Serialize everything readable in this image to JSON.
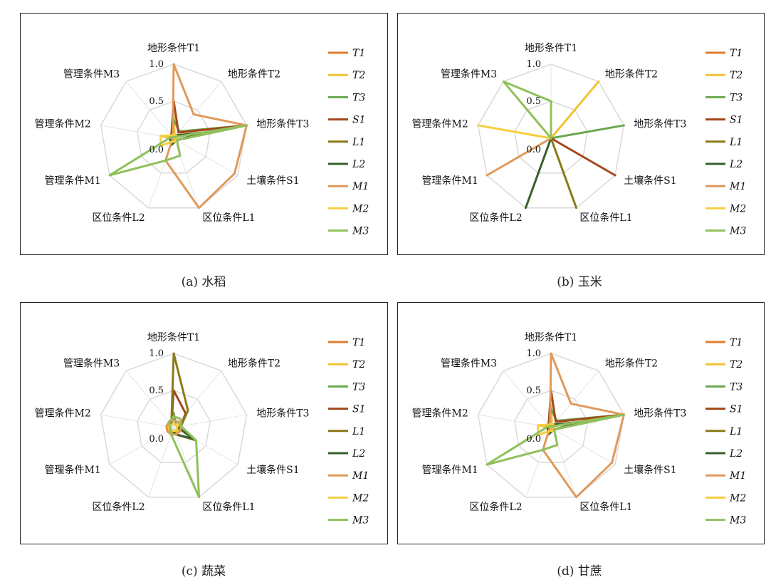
{
  "chart_data": [
    {
      "type": "radar",
      "caption": "(a) 水稻",
      "axes": [
        "地形条件T1",
        "地形条件T2",
        "地形条件T3",
        "土壤条件S1",
        "区位条件L1",
        "区位条件L2",
        "管理条件M1",
        "管理条件M2",
        "管理条件M3"
      ],
      "axis_label_visible": [
        true,
        true,
        true,
        true,
        true,
        true,
        true,
        true,
        true
      ],
      "ticks": [
        "0.0",
        "0.5",
        "1.0"
      ],
      "rlim": [
        0,
        1
      ],
      "legend": "right",
      "series": [
        {
          "name": "T1",
          "color": "#e07b2a",
          "values": [
            0.05,
            0.02,
            0.02,
            0.02,
            0.02,
            0.02,
            0.02,
            0.02,
            0.02
          ]
        },
        {
          "name": "T2",
          "color": "#f1c232",
          "values": [
            0.3,
            0.02,
            0.05,
            0.02,
            0.02,
            0.02,
            0.02,
            0.15,
            0.02
          ]
        },
        {
          "name": "T3",
          "color": "#6aa84f",
          "values": [
            0.25,
            0.12,
            1.0,
            0.05,
            0.05,
            0.05,
            0.05,
            0.05,
            0.05
          ]
        },
        {
          "name": "S1",
          "color": "#a3471b",
          "values": [
            0.5,
            0.1,
            1.0,
            0.05,
            0.05,
            0.05,
            0.05,
            0.05,
            0.05
          ]
        },
        {
          "name": "L1",
          "color": "#8b7a1a",
          "values": [
            0.05,
            0.05,
            0.5,
            0.05,
            0.05,
            0.05,
            0.05,
            0.05,
            0.05
          ]
        },
        {
          "name": "L2",
          "color": "#38602a",
          "values": [
            0.05,
            0.05,
            0.45,
            0.05,
            0.05,
            0.1,
            0.05,
            0.05,
            0.05
          ]
        },
        {
          "name": "M1",
          "color": "#e0995a",
          "values": [
            1.0,
            0.42,
            1.0,
            0.95,
            1.0,
            0.32,
            0.02,
            0.02,
            0.02
          ]
        },
        {
          "name": "M2",
          "color": "#f5cf40",
          "values": [
            0.05,
            0.05,
            0.05,
            0.05,
            0.05,
            0.05,
            0.2,
            0.18,
            0.05
          ]
        },
        {
          "name": "M3",
          "color": "#8fc15a",
          "values": [
            0.02,
            0.02,
            1.0,
            0.05,
            0.25,
            0.32,
            1.0,
            0.05,
            0.02
          ]
        }
      ]
    },
    {
      "type": "radar",
      "caption": "(b) 玉米",
      "axes": [
        "地形条件T1",
        "地形条件T2",
        "地形条件T3",
        "土壤条件S1",
        "区位条件L1",
        "区位条件L2",
        "管理条件M1",
        "管理条件M2",
        "管理条件M3"
      ],
      "axis_label_visible": [
        true,
        true,
        true,
        true,
        true,
        true,
        true,
        true,
        true
      ],
      "ticks": [
        "0.0",
        "0.5",
        "1.0"
      ],
      "rlim": [
        0,
        1
      ],
      "legend": "right",
      "series": [
        {
          "name": "T1",
          "color": "#e07b2a",
          "values": [
            0,
            0,
            0,
            0,
            0,
            0,
            0,
            0,
            0
          ]
        },
        {
          "name": "T2",
          "color": "#f1c232",
          "values": [
            0,
            1.0,
            0,
            0,
            0,
            0,
            0,
            0,
            0
          ]
        },
        {
          "name": "T3",
          "color": "#6aa84f",
          "values": [
            0,
            0,
            1.0,
            0,
            0,
            0,
            0,
            0,
            0
          ]
        },
        {
          "name": "S1",
          "color": "#a3471b",
          "values": [
            0,
            0,
            0,
            1.0,
            0,
            0,
            0,
            0,
            0
          ]
        },
        {
          "name": "L1",
          "color": "#8b7a1a",
          "values": [
            0,
            0,
            0,
            0,
            1.0,
            0,
            0,
            0,
            0
          ]
        },
        {
          "name": "L2",
          "color": "#38602a",
          "values": [
            0,
            0,
            0,
            0,
            0,
            1.0,
            0,
            0,
            0
          ]
        },
        {
          "name": "M1",
          "color": "#e0995a",
          "values": [
            0,
            0,
            0,
            0,
            0,
            0,
            1.0,
            0,
            0
          ]
        },
        {
          "name": "M2",
          "color": "#f5cf40",
          "values": [
            0,
            0,
            0,
            0,
            0,
            0,
            0,
            1.0,
            0
          ]
        },
        {
          "name": "M3",
          "color": "#8fc15a",
          "values": [
            0.5,
            0,
            0,
            0,
            0,
            0,
            0,
            0,
            1.0
          ]
        }
      ]
    },
    {
      "type": "radar",
      "caption": "(c) 蔬菜",
      "axes": [
        "地形条件T1",
        "地形条件T2",
        "地形条件T3",
        "土壤条件S1",
        "区位条件L1",
        "区位条件L2",
        "管理条件M1",
        "管理条件M2",
        "管理条件M3"
      ],
      "axis_label_visible": [
        true,
        true,
        true,
        true,
        true,
        true,
        true,
        true,
        true
      ],
      "ticks": [
        "0.0",
        "0.5",
        "1.0"
      ],
      "rlim": [
        0,
        1
      ],
      "legend": "right",
      "series": [
        {
          "name": "T1",
          "color": "#e07b2a",
          "values": [
            0.05,
            0.05,
            0.05,
            0.05,
            0.05,
            0.05,
            0.05,
            0.05,
            0.05
          ]
        },
        {
          "name": "T2",
          "color": "#f1c232",
          "values": [
            0.1,
            0.1,
            0.08,
            0.08,
            0.08,
            0.08,
            0.08,
            0.08,
            0.08
          ]
        },
        {
          "name": "T3",
          "color": "#6aa84f",
          "values": [
            0.2,
            0.05,
            0.05,
            0.05,
            0.05,
            0.05,
            0.05,
            0.05,
            0.05
          ]
        },
        {
          "name": "S1",
          "color": "#a3471b",
          "values": [
            0.5,
            0.25,
            0.1,
            0.05,
            0.05,
            0.05,
            0.05,
            0.05,
            0.05
          ]
        },
        {
          "name": "L1",
          "color": "#8b7a1a",
          "values": [
            1.0,
            0.3,
            0.1,
            0.35,
            0.1,
            0.05,
            0.05,
            0.05,
            0.05
          ]
        },
        {
          "name": "L2",
          "color": "#38602a",
          "values": [
            0.05,
            0.05,
            0.05,
            0.3,
            0.1,
            0.05,
            0.05,
            0.05,
            0.05
          ]
        },
        {
          "name": "M1",
          "color": "#e0995a",
          "values": [
            0.1,
            0.1,
            0.1,
            0.1,
            0.1,
            0.1,
            0.1,
            0.1,
            0.1
          ]
        },
        {
          "name": "M2",
          "color": "#f5cf40",
          "values": [
            0.05,
            0.05,
            0.05,
            0.05,
            0.05,
            0.05,
            0.05,
            0.05,
            0.05
          ]
        },
        {
          "name": "M3",
          "color": "#8fc15a",
          "values": [
            0.15,
            0.15,
            0.1,
            0.35,
            1.0,
            0.1,
            0.05,
            0.05,
            0.1
          ]
        }
      ]
    },
    {
      "type": "radar",
      "caption": "(d) 甘蔗",
      "axes": [
        "地形条件T1",
        "地形条件T2",
        "地形条件T3",
        "土壤条件S1",
        "区位条件L1",
        "区位条件L2",
        "管理条件M1",
        "管理条件M2",
        "管理条件M3"
      ],
      "axis_label_visible": [
        true,
        true,
        true,
        true,
        true,
        true,
        true,
        true,
        true
      ],
      "ticks": [
        "0.0",
        "0.5",
        "1.0"
      ],
      "rlim": [
        0,
        1
      ],
      "legend": "right",
      "series": [
        {
          "name": "T1",
          "color": "#e07b2a",
          "values": [
            0.05,
            0.02,
            0.02,
            0.02,
            0.02,
            0.02,
            0.02,
            0.02,
            0.02
          ]
        },
        {
          "name": "T2",
          "color": "#f1c232",
          "values": [
            0.3,
            0.02,
            0.05,
            0.02,
            0.02,
            0.02,
            0.02,
            0.15,
            0.02
          ]
        },
        {
          "name": "T3",
          "color": "#6aa84f",
          "values": [
            0.25,
            0.12,
            1.0,
            0.05,
            0.05,
            0.05,
            0.05,
            0.05,
            0.05
          ]
        },
        {
          "name": "S1",
          "color": "#a3471b",
          "values": [
            0.5,
            0.1,
            1.0,
            0.05,
            0.05,
            0.05,
            0.05,
            0.05,
            0.05
          ]
        },
        {
          "name": "L1",
          "color": "#8b7a1a",
          "values": [
            0.05,
            0.05,
            0.5,
            0.05,
            0.05,
            0.05,
            0.05,
            0.05,
            0.05
          ]
        },
        {
          "name": "L2",
          "color": "#38602a",
          "values": [
            0.05,
            0.05,
            0.45,
            0.05,
            0.05,
            0.1,
            0.05,
            0.05,
            0.05
          ]
        },
        {
          "name": "M1",
          "color": "#e0995a",
          "values": [
            1.0,
            0.42,
            1.0,
            0.95,
            1.0,
            0.32,
            0.02,
            0.02,
            0.02
          ]
        },
        {
          "name": "M2",
          "color": "#f5cf40",
          "values": [
            0.05,
            0.05,
            0.05,
            0.05,
            0.05,
            0.05,
            0.2,
            0.18,
            0.05
          ]
        },
        {
          "name": "M3",
          "color": "#8fc15a",
          "values": [
            0.02,
            0.02,
            1.0,
            0.05,
            0.25,
            0.32,
            1.0,
            0.05,
            0.02
          ]
        }
      ]
    }
  ]
}
